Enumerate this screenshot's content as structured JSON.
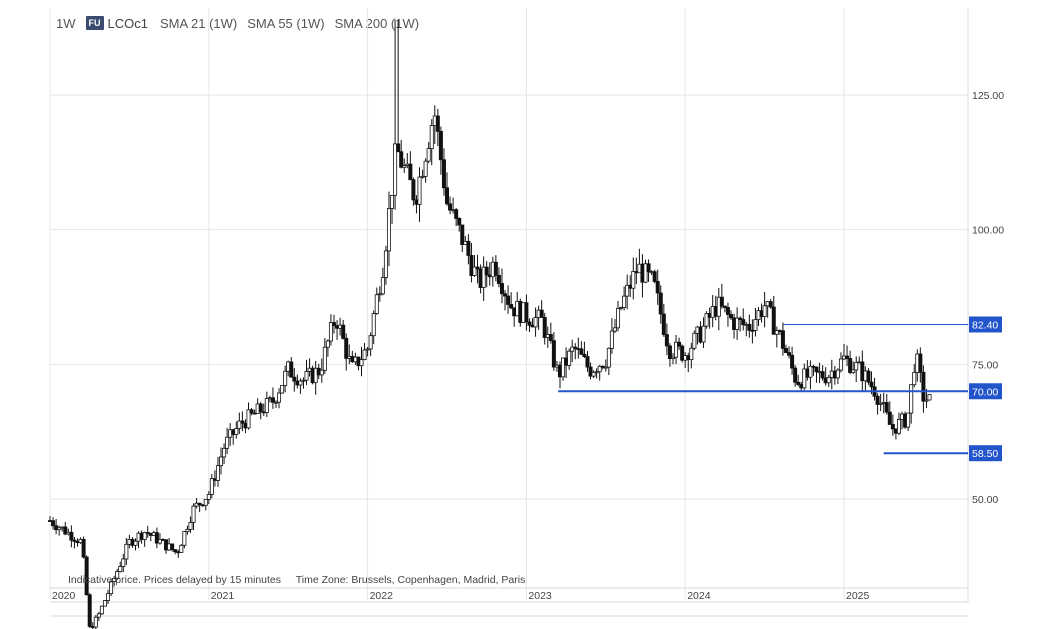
{
  "header": {
    "interval": "1W",
    "exchange_badge": "FU",
    "symbol": "LCOc1",
    "indicators": [
      "SMA 21 (1W)",
      "SMA 55 (1W)",
      "SMA 200 (1W)"
    ]
  },
  "footnote": {
    "price_note": "Indicative price. Prices delayed by 15 minutes",
    "timezone": "Time Zone: Brussels, Copenhagen, Madrid, Paris"
  },
  "colors": {
    "candle": "#111111",
    "level_line": "#2255cc",
    "grid": "#e6e6e6",
    "axis_text": "#444444"
  },
  "chart_data": {
    "type": "candlestick",
    "y_axis": {
      "ticks": [
        125.0,
        100.0,
        75.0,
        50.0
      ],
      "tick_labels": [
        "125.00",
        "100.00",
        "75.00",
        "50.00"
      ],
      "position": "right"
    },
    "x_axis": {
      "labels": [
        "2020",
        "2021",
        "2022",
        "2023",
        "2024",
        "2025"
      ],
      "positions": [
        2020.0,
        2021.0,
        2022.0,
        2023.0,
        2024.0,
        2025.0
      ]
    },
    "grid": true,
    "levels": [
      {
        "value": 82.4,
        "label": "82.40",
        "from": 2024.62,
        "style": "thin"
      },
      {
        "value": 70.0,
        "label": "70.00",
        "from": 2023.2,
        "style": "thick"
      },
      {
        "value": 58.5,
        "label": "58.50",
        "from": 2025.25,
        "style": "thick"
      }
    ],
    "approx_weekly_closes": [
      [
        2020.0,
        46
      ],
      [
        2020.1,
        44
      ],
      [
        2020.2,
        42
      ],
      [
        2020.25,
        26
      ],
      [
        2020.3,
        28
      ],
      [
        2020.4,
        35
      ],
      [
        2020.5,
        42
      ],
      [
        2020.6,
        44
      ],
      [
        2020.7,
        42
      ],
      [
        2020.8,
        40
      ],
      [
        2020.9,
        48
      ],
      [
        2021.0,
        51
      ],
      [
        2021.1,
        60
      ],
      [
        2021.2,
        64
      ],
      [
        2021.3,
        66
      ],
      [
        2021.4,
        68
      ],
      [
        2021.5,
        74
      ],
      [
        2021.6,
        72
      ],
      [
        2021.7,
        74
      ],
      [
        2021.8,
        84
      ],
      [
        2021.9,
        74
      ],
      [
        2022.0,
        78
      ],
      [
        2022.1,
        94
      ],
      [
        2022.18,
        115
      ],
      [
        2022.3,
        106
      ],
      [
        2022.42,
        122
      ],
      [
        2022.5,
        105
      ],
      [
        2022.6,
        98
      ],
      [
        2022.7,
        90
      ],
      [
        2022.8,
        94
      ],
      [
        2022.9,
        86
      ],
      [
        2023.0,
        84
      ],
      [
        2023.1,
        83
      ],
      [
        2023.2,
        73
      ],
      [
        2023.3,
        78
      ],
      [
        2023.4,
        74
      ],
      [
        2023.5,
        76
      ],
      [
        2023.6,
        86
      ],
      [
        2023.7,
        93
      ],
      [
        2023.8,
        90
      ],
      [
        2023.9,
        78
      ],
      [
        2024.0,
        77
      ],
      [
        2024.1,
        81
      ],
      [
        2024.2,
        86
      ],
      [
        2024.3,
        83
      ],
      [
        2024.4,
        82
      ],
      [
        2024.5,
        86
      ],
      [
        2024.6,
        80
      ],
      [
        2024.7,
        72
      ],
      [
        2024.8,
        73
      ],
      [
        2024.9,
        73
      ],
      [
        2025.0,
        76
      ],
      [
        2025.1,
        74
      ],
      [
        2025.2,
        70
      ],
      [
        2025.3,
        63
      ],
      [
        2025.4,
        65
      ],
      [
        2025.45,
        77
      ],
      [
        2025.5,
        69
      ],
      [
        2025.55,
        68
      ]
    ]
  }
}
